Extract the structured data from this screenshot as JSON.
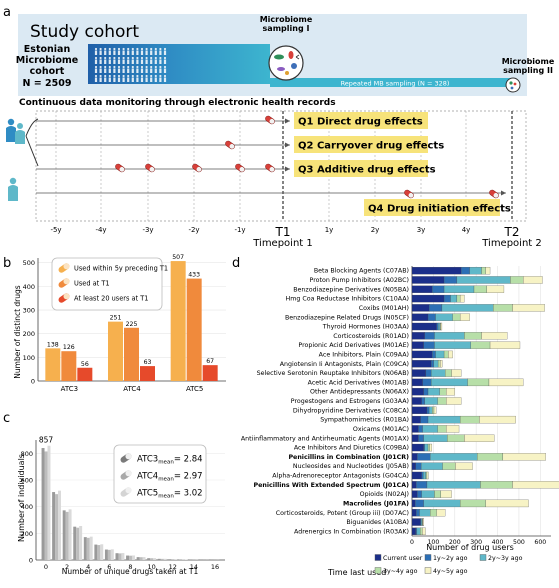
{
  "panel_labels": {
    "a": "a",
    "b": "b",
    "c": "c",
    "d": "d"
  },
  "panel_a": {
    "study_cohort": "Study cohort",
    "cohort_line1": "Estonian",
    "cohort_line2": "Microbiome",
    "cohort_line3": "cohort",
    "cohort_n": "N = 2509",
    "sampling_1_line1": "Microbiome",
    "sampling_1_line2": "sampling I",
    "sampling_2_line1": "Microbiome",
    "sampling_2_line2": "sampling II",
    "repeated": "Repeated MB sampling (N = 328)",
    "continuous": "Continuous data monitoring through electronic health records",
    "q1": "Q1 Direct drug effects",
    "q2": "Q2 Carryover drug effects",
    "q3": "Q3 Additive drug effects",
    "q4": "Q4 Drug initiation effects",
    "axis_ticks": [
      "-5y",
      "-4y",
      "-3y",
      "-2y",
      "-1y",
      "T1",
      "1y",
      "2y",
      "3y",
      "4y",
      "T2"
    ],
    "timepoint1": "Timepoint 1",
    "timepoint2": "Timepoint 2",
    "colors": {
      "cohort_dark": "#1f5fa8",
      "cohort_light": "#3db5cf",
      "band": "#dbe9f3",
      "box": "#f7e37a",
      "pill": "#d8403a"
    }
  },
  "panel_b": {
    "chart_data": {
      "type": "bar",
      "categories": [
        "ATC3",
        "ATC4",
        "ATC5"
      ],
      "series": [
        {
          "name": "Used within 5y preceding T1",
          "values": [
            138,
            251,
            507
          ],
          "color": "#f6b04e"
        },
        {
          "name": "Used at T1",
          "values": [
            126,
            225,
            433
          ],
          "color": "#f08a3c"
        },
        {
          "name": "At least 20 users at T1",
          "values": [
            56,
            63,
            67
          ],
          "color": "#e64a2b"
        }
      ],
      "ylabel": "Number of distinct drugs",
      "ylim": [
        0,
        520
      ],
      "yticks": [
        0,
        100,
        200,
        300,
        400,
        500
      ]
    }
  },
  "panel_c": {
    "chart_data": {
      "type": "bar",
      "x": [
        0,
        1,
        2,
        3,
        4,
        5,
        6,
        7,
        8,
        9,
        10,
        11,
        12,
        13,
        14,
        15,
        16
      ],
      "values": [
        857,
        520,
        380,
        255,
        175,
        118,
        80,
        52,
        34,
        22,
        14,
        9,
        6,
        4,
        2,
        1,
        1
      ],
      "top_label": "857",
      "xlabel": "Number of unique drugs taken at T1",
      "ylabel": "Number of individuals",
      "xticks": [
        0,
        2,
        4,
        6,
        8,
        10,
        12,
        14,
        16
      ],
      "yticks": [
        0,
        200,
        400,
        600,
        800
      ],
      "ylim": [
        0,
        900
      ]
    },
    "legend": [
      {
        "base": "ATC3",
        "sub": "mean",
        "value": "= 2.84"
      },
      {
        "base": "ATC4",
        "sub": "mean",
        "value": "= 2.97"
      },
      {
        "base": "ATC5",
        "sub": "mean",
        "value": "= 3.02"
      }
    ]
  },
  "panel_d": {
    "chart_data": {
      "type": "bar",
      "orientation": "horizontal",
      "stacked": true,
      "categories": [
        {
          "name": "Beta Blocking Agents (C07AB)",
          "bold": false,
          "values": [
            230,
            40,
            55,
            20,
            20
          ]
        },
        {
          "name": "Proton Pump Inhibitors (A02BC)",
          "bold": false,
          "values": [
            150,
            60,
            250,
            60,
            90
          ]
        },
        {
          "name": "Benzodiazepine Derivatives (N05BA)",
          "bold": false,
          "values": [
            95,
            55,
            140,
            60,
            80
          ]
        },
        {
          "name": "Hmg Coa Reductase Inhibitors (C10AA)",
          "bold": false,
          "values": [
            150,
            30,
            30,
            15,
            20
          ]
        },
        {
          "name": "Coxibs (M01AH)",
          "bold": false,
          "values": [
            80,
            60,
            240,
            90,
            150
          ]
        },
        {
          "name": "Benzodiazepine Related Drugs (N05CF)",
          "bold": false,
          "values": [
            75,
            35,
            80,
            35,
            45
          ]
        },
        {
          "name": "Thyroid Hormones (H03AA)",
          "bold": false,
          "values": [
            115,
            8,
            8,
            4,
            5
          ]
        },
        {
          "name": "Corticosteroids (R01AD)",
          "bold": false,
          "values": [
            60,
            45,
            140,
            80,
            120
          ]
        },
        {
          "name": "Propionic Acid Derivatives (M01AE)",
          "bold": false,
          "values": [
            55,
            50,
            170,
            90,
            140
          ]
        },
        {
          "name": "Ace Inhibitors, Plain (C09AA)",
          "bold": false,
          "values": [
            95,
            15,
            40,
            20,
            20
          ]
        },
        {
          "name": "Angiotensin Ii Antagonists, Plain (C09CA)",
          "bold": false,
          "values": [
            90,
            12,
            20,
            10,
            10
          ]
        },
        {
          "name": "Selective Serotonin Reuptake Inhibitors (N06AB)",
          "bold": false,
          "values": [
            65,
            25,
            65,
            30,
            45
          ]
        },
        {
          "name": "Acetic Acid Derivatives (M01AB)",
          "bold": false,
          "values": [
            50,
            40,
            170,
            100,
            160
          ]
        },
        {
          "name": "Other Antidepressants (N06AX)",
          "bold": false,
          "values": [
            55,
            20,
            55,
            30,
            40
          ]
        },
        {
          "name": "Progestogens and Estrogens (G03AA)",
          "bold": false,
          "values": [
            45,
            15,
            60,
            40,
            70
          ]
        },
        {
          "name": "Dihydropyridine Derivatives (C08CA)",
          "bold": false,
          "values": [
            70,
            10,
            15,
            8,
            10
          ]
        },
        {
          "name": "Sympathomimetics (R01BA)",
          "bold": false,
          "values": [
            40,
            35,
            150,
            90,
            170
          ]
        },
        {
          "name": "Oxicams (M01AC)",
          "bold": false,
          "values": [
            30,
            20,
            70,
            40,
            60
          ]
        },
        {
          "name": "Antiinflammatory and Antirheumatic Agents (M01AX)",
          "bold": false,
          "values": [
            30,
            25,
            110,
            80,
            140
          ]
        },
        {
          "name": "Ace Inhibitors And Diuretics (C09BA)",
          "bold": false,
          "values": [
            55,
            5,
            15,
            8,
            10
          ]
        },
        {
          "name": "Penicillins in Combination (J01CR)",
          "bold": true,
          "values": [
            25,
            60,
            220,
            120,
            200
          ]
        },
        {
          "name": "Nucleosides and Nucleotides (J05AB)",
          "bold": false,
          "values": [
            18,
            25,
            100,
            60,
            80
          ]
        },
        {
          "name": "Alpha-Adrenoreceptor Antagonists (G04CA)",
          "bold": false,
          "values": [
            45,
            8,
            12,
            5,
            7
          ]
        },
        {
          "name": "Penicillins With Extended Spectrum (J01CA)",
          "bold": true,
          "values": [
            20,
            50,
            250,
            150,
            250
          ]
        },
        {
          "name": "Opioids (N02AJ)",
          "bold": false,
          "values": [
            25,
            20,
            60,
            30,
            50
          ]
        },
        {
          "name": "Macrolides (J01FA)",
          "bold": true,
          "values": [
            15,
            40,
            170,
            120,
            200
          ]
        },
        {
          "name": "Corticosteroids, Potent (Group iii) (D07AC)",
          "bold": false,
          "values": [
            20,
            15,
            50,
            30,
            40
          ]
        },
        {
          "name": "Biguanides (A10BA)",
          "bold": false,
          "values": [
            40,
            3,
            5,
            3,
            4
          ]
        },
        {
          "name": "Adrenergics In Combination (R03AK)",
          "bold": false,
          "values": [
            18,
            5,
            15,
            10,
            15
          ]
        }
      ],
      "series": [
        {
          "name": "Current user",
          "color": "#1b2f8a"
        },
        {
          "name": "1y~2y ago",
          "color": "#2c6fb5"
        },
        {
          "name": "2y~3y ago",
          "color": "#5fb8c9"
        },
        {
          "name": "3y~4y ago",
          "color": "#b7dfa8"
        },
        {
          "name": "4y~5y ago",
          "color": "#f7f3c5"
        }
      ],
      "xlabel": "Number of drug users",
      "xticks": [
        0,
        100,
        200,
        300,
        400,
        500,
        600
      ],
      "xlim": [
        0,
        650
      ]
    },
    "legend_title": "Time last used"
  }
}
